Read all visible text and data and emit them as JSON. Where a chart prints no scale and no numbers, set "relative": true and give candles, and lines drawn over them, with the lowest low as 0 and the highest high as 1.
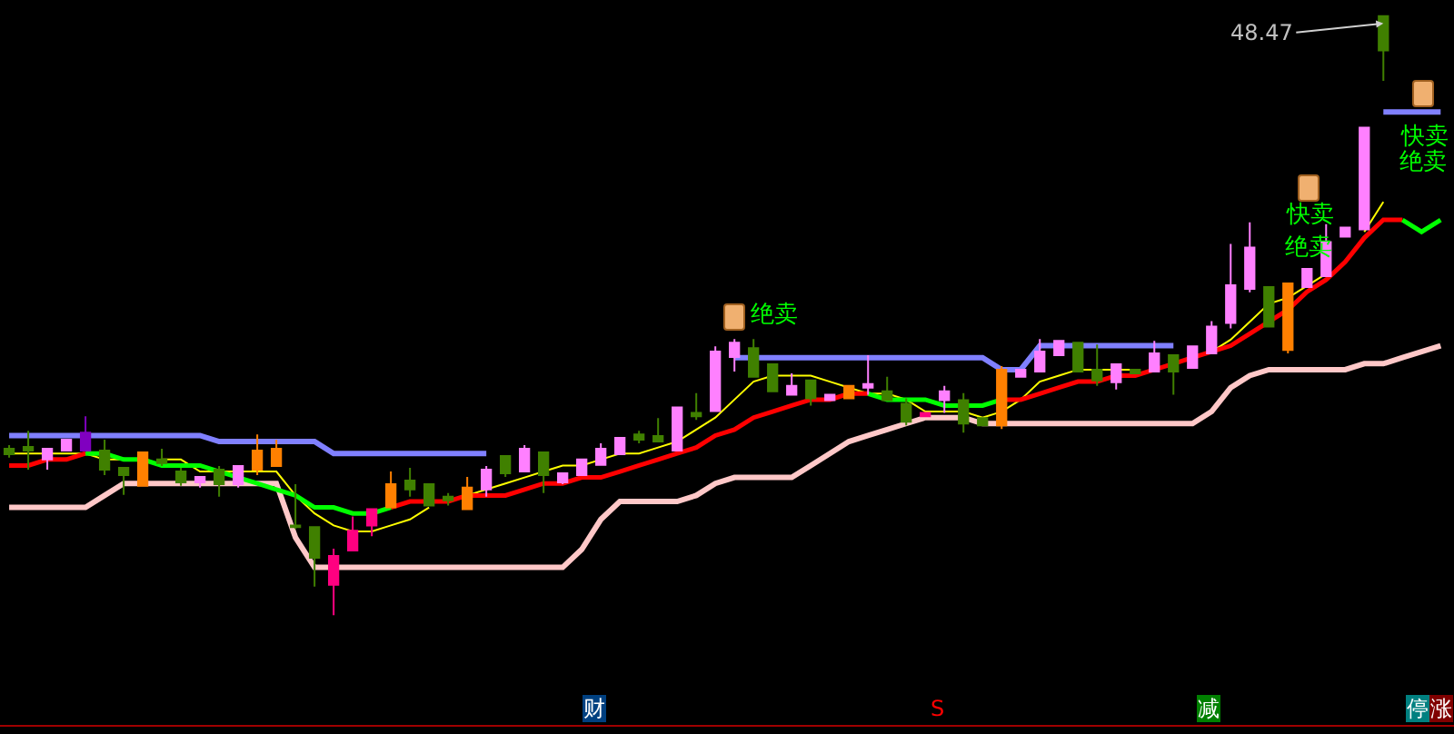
{
  "chart_data": {
    "type": "candlestick",
    "relative": true,
    "marker": "none",
    "line_style": "solid",
    "categories": [
      null,
      null,
      null,
      null,
      null,
      null,
      null,
      null,
      null,
      null,
      null,
      null,
      null,
      null,
      null,
      null,
      null,
      null,
      null,
      null,
      null,
      null,
      null,
      null,
      null,
      null,
      null,
      null,
      null,
      null,
      null,
      null,
      null,
      null,
      null,
      null,
      null,
      null,
      null,
      null,
      null,
      null,
      null,
      null,
      null,
      null,
      null,
      null,
      null,
      null,
      null,
      null,
      null,
      null,
      null,
      null,
      null,
      null,
      null,
      null,
      null,
      null,
      null,
      null,
      null,
      null,
      null,
      null,
      null,
      null,
      null,
      null,
      null,
      null,
      null,
      null
    ],
    "ohlc": [
      [
        0.278,
        0.284,
        0.263,
        0.269
      ],
      [
        0.281,
        0.308,
        0.243,
        0.275
      ],
      [
        0.26,
        0.278,
        0.243,
        0.278
      ],
      [
        0.275,
        0.293,
        0.275,
        0.293
      ],
      [
        0.305,
        0.332,
        0.275,
        0.275
      ],
      [
        0.275,
        0.293,
        0.234,
        0.243
      ],
      [
        0.246,
        0.246,
        0.201,
        0.234
      ],
      [
        0.216,
        0.272,
        0.216,
        0.272
      ],
      [
        0.26,
        0.278,
        0.249,
        0.254
      ],
      [
        0.24,
        0.246,
        0.216,
        0.222
      ],
      [
        0.222,
        0.231,
        0.213,
        0.231
      ],
      [
        0.243,
        0.249,
        0.198,
        0.219
      ],
      [
        0.219,
        0.249,
        0.213,
        0.249
      ],
      [
        0.243,
        0.302,
        0.234,
        0.275
      ],
      [
        0.249,
        0.293,
        0.249,
        0.278
      ],
      [
        0.15,
        0.219,
        0.144,
        0.147
      ],
      [
        0.147,
        0.147,
        0.048,
        0.096
      ],
      [
        0.051,
        0.111,
        0,
        0.099
      ],
      [
        0.108,
        0.165,
        0.108,
        0.141
      ],
      [
        0.15,
        0.177,
        0.132,
        0.177
      ],
      [
        0.18,
        0.24,
        0.18,
        0.219
      ],
      [
        0.225,
        0.246,
        0.198,
        0.21
      ],
      [
        0.219,
        0.219,
        0.183,
        0.183
      ],
      [
        0.198,
        0.204,
        0.183,
        0.192
      ],
      [
        0.177,
        0.231,
        0.177,
        0.213
      ],
      [
        0.21,
        0.249,
        0.198,
        0.243
      ],
      [
        0.266,
        0.266,
        0.231,
        0.237
      ],
      [
        0.24,
        0.284,
        0.24,
        0.278
      ],
      [
        0.272,
        0.272,
        0.204,
        0.234
      ],
      [
        0.222,
        0.237,
        0.219,
        0.237
      ],
      [
        0.234,
        0.26,
        0.234,
        0.26
      ],
      [
        0.251,
        0.287,
        0.251,
        0.278
      ],
      [
        0.269,
        0.296,
        0.269,
        0.296
      ],
      [
        0.302,
        0.308,
        0.287,
        0.293
      ],
      [
        0.299,
        0.329,
        0.29,
        0.29
      ],
      [
        0.275,
        0.347,
        0.275,
        0.347
      ],
      [
        0.338,
        0.371,
        0.326,
        0.332
      ],
      [
        0.341,
        0.449,
        0.341,
        0.44
      ],
      [
        0.431,
        0.461,
        0.407,
        0.455
      ],
      [
        0.446,
        0.461,
        0.398,
        0.398
      ],
      [
        0.419,
        0.419,
        0.374,
        0.374
      ],
      [
        0.368,
        0.404,
        0.368,
        0.383
      ],
      [
        0.392,
        0.392,
        0.35,
        0.362
      ],
      [
        0.359,
        0.368,
        0.359,
        0.368
      ],
      [
        0.362,
        0.383,
        0.362,
        0.383
      ],
      [
        0.38,
        0.434,
        0.368,
        0.386
      ],
      [
        0.374,
        0.398,
        0.359,
        0.359
      ],
      [
        0.353,
        0.362,
        0.317,
        0.323
      ],
      [
        0.332,
        0.338,
        0.332,
        0.338
      ],
      [
        0.359,
        0.383,
        0.338,
        0.374
      ],
      [
        0.359,
        0.371,
        0.305,
        0.32
      ],
      [
        0.329,
        0.329,
        0.317,
        0.317
      ],
      [
        0.317,
        0.416,
        0.311,
        0.41
      ],
      [
        0.398,
        0.41,
        0.398,
        0.41
      ],
      [
        0.407,
        0.461,
        0.407,
        0.44
      ],
      [
        0.434,
        0.458,
        0.434,
        0.458
      ],
      [
        0.455,
        0.455,
        0.407,
        0.407
      ],
      [
        0.41,
        0.452,
        0.383,
        0.392
      ],
      [
        0.389,
        0.419,
        0.377,
        0.419
      ],
      [
        0.41,
        0.41,
        0.404,
        0.404
      ],
      [
        0.407,
        0.458,
        0.407,
        0.437
      ],
      [
        0.434,
        0.434,
        0.368,
        0.407
      ],
      [
        0.413,
        0.449,
        0.413,
        0.449
      ],
      [
        0.437,
        0.491,
        0.437,
        0.482
      ],
      [
        0.488,
        0.62,
        0.479,
        0.551
      ],
      [
        0.545,
        0.656,
        0.539,
        0.614
      ],
      [
        0.548,
        0.548,
        0.482,
        0.482
      ],
      [
        0.443,
        0.554,
        0.437,
        0.554
      ],
      [
        0.548,
        0.578,
        0.548,
        0.578
      ],
      [
        0.566,
        0.653,
        0.566,
        0.623
      ],
      [
        0.632,
        0.647,
        0.632,
        0.647
      ],
      [
        0.644,
        0.814,
        0.644,
        0.814
      ],
      [
        1,
        1,
        0.892,
        0.943
      ],
      null,
      null,
      null
    ],
    "colors": [
      "#408000",
      "#408000",
      "#ff80ff",
      "#ff80ff",
      "#8000c0",
      "#408000",
      "#408000",
      "#ff8000",
      "#408000",
      "#408000",
      "#ff80ff",
      "#408000",
      "#ff80ff",
      "#ff8000",
      "#ff8000",
      "#408000",
      "#408000",
      "#ff0080",
      "#ff0080",
      "#ff0080",
      "#ff8000",
      "#408000",
      "#408000",
      "#408000",
      "#ff8000",
      "#ff80ff",
      "#408000",
      "#ff80ff",
      "#408000",
      "#ff80ff",
      "#ff80ff",
      "#ff80ff",
      "#ff80ff",
      "#408000",
      "#408000",
      "#ff80ff",
      "#408000",
      "#ff80ff",
      "#ff80ff",
      "#408000",
      "#408000",
      "#ff80ff",
      "#408000",
      "#ff80ff",
      "#ff8000",
      "#ff80ff",
      "#408000",
      "#408000",
      "#ff0080",
      "#ff80ff",
      "#408000",
      "#408000",
      "#ff8000",
      "#ff80ff",
      "#ff80ff",
      "#ff80ff",
      "#408000",
      "#408000",
      "#ff80ff",
      "#408000",
      "#ff80ff",
      "#408000",
      "#ff80ff",
      "#ff80ff",
      "#ff80ff",
      "#ff80ff",
      "#408000",
      "#ff8000",
      "#ff80ff",
      "#ff80ff",
      "#ff80ff",
      "#ff80ff",
      "#408000",
      null,
      null,
      null
    ],
    "series": [
      {
        "type": "line",
        "color": "#8080ff",
        "values": [
          0.3,
          0.3,
          0.3,
          0.3,
          0.3,
          0.3,
          0.3,
          0.3,
          0.3,
          0.3,
          0.3,
          0.29,
          0.29,
          0.29,
          0.29,
          0.29,
          0.29,
          0.27,
          0.27,
          0.27,
          0.27,
          0.27,
          0.27,
          0.27,
          0.27,
          0.27,
          null,
          null,
          null,
          null,
          null,
          null,
          null,
          null,
          null,
          null,
          null,
          null,
          0.43,
          0.43,
          0.43,
          0.43,
          0.43,
          0.43,
          0.43,
          0.43,
          0.43,
          0.43,
          0.43,
          0.43,
          0.43,
          0.43,
          0.41,
          0.41,
          0.45,
          0.45,
          0.45,
          0.45,
          0.45,
          0.45,
          0.45,
          0.45,
          null,
          null,
          null,
          null,
          null,
          null,
          null,
          null,
          null,
          null,
          0.84,
          0.84,
          0.84,
          0.84
        ]
      },
      {
        "type": "line",
        "color": "#ffc8c8",
        "values": [
          0.18,
          0.18,
          0.18,
          0.18,
          0.18,
          0.2,
          0.22,
          0.22,
          0.22,
          0.22,
          0.22,
          0.22,
          0.22,
          0.22,
          0.22,
          0.13,
          0.08,
          0.08,
          0.08,
          0.08,
          0.08,
          0.08,
          0.08,
          0.08,
          0.08,
          0.08,
          0.08,
          0.08,
          0.08,
          0.08,
          0.11,
          0.16,
          0.19,
          0.19,
          0.19,
          0.19,
          0.2,
          0.22,
          0.23,
          0.23,
          0.23,
          0.23,
          0.25,
          0.27,
          0.29,
          0.3,
          0.31,
          0.32,
          0.33,
          0.33,
          0.33,
          0.32,
          0.32,
          0.32,
          0.32,
          0.32,
          0.32,
          0.32,
          0.32,
          0.32,
          0.32,
          0.32,
          0.32,
          0.34,
          0.38,
          0.4,
          0.41,
          0.41,
          0.41,
          0.41,
          0.41,
          0.42,
          0.42,
          0.43,
          0.44,
          0.45
        ]
      },
      {
        "type": "line",
        "color": "#ffff00",
        "values": [
          0.27,
          0.27,
          0.27,
          0.27,
          0.27,
          0.26,
          0.26,
          null,
          0.26,
          0.26,
          0.24,
          0.24,
          0.24,
          0.24,
          0.24,
          0.2,
          0.17,
          0.15,
          0.14,
          0.14,
          0.15,
          0.16,
          0.18,
          null,
          0.2,
          0.21,
          0.22,
          0.23,
          0.24,
          0.25,
          0.25,
          0.26,
          0.27,
          0.27,
          0.28,
          0.29,
          0.31,
          0.33,
          0.36,
          0.39,
          0.4,
          0.4,
          0.4,
          0.39,
          0.38,
          0.37,
          0.37,
          0.36,
          0.34,
          0.34,
          0.34,
          0.33,
          0.34,
          0.36,
          0.39,
          0.4,
          0.41,
          0.41,
          0.41,
          0.41,
          null,
          null,
          null,
          0.44,
          0.46,
          0.49,
          0.52,
          0.53,
          0.55,
          0.57,
          null,
          0.64,
          0.69,
          null,
          null,
          null
        ]
      },
      {
        "type": "line",
        "color": "#ff0000",
        "values": [
          0.25,
          0.25,
          0.26,
          0.26,
          0.27,
          null,
          null,
          null,
          null,
          null,
          null,
          null,
          null,
          null,
          null,
          null,
          null,
          null,
          null,
          null,
          0.18,
          0.19,
          0.19,
          0.19,
          0.2,
          0.2,
          0.2,
          0.21,
          0.22,
          0.22,
          0.23,
          0.23,
          0.24,
          0.25,
          0.26,
          0.27,
          0.28,
          0.3,
          0.31,
          0.33,
          0.34,
          0.35,
          0.36,
          0.36,
          0.37,
          0.37,
          null,
          null,
          null,
          null,
          null,
          null,
          0.36,
          0.36,
          0.37,
          0.38,
          0.39,
          0.39,
          0.4,
          0.4,
          0.41,
          0.42,
          0.43,
          0.44,
          0.45,
          0.47,
          0.49,
          0.51,
          0.54,
          0.56,
          0.59,
          0.63,
          0.66,
          0.66,
          null,
          null
        ]
      },
      {
        "type": "line",
        "color": "#00ff00",
        "values": [
          null,
          null,
          null,
          null,
          0.27,
          0.27,
          0.26,
          0.26,
          0.25,
          0.25,
          0.25,
          0.24,
          0.23,
          0.22,
          0.21,
          0.2,
          0.18,
          0.18,
          0.17,
          0.17,
          0.18,
          null,
          null,
          null,
          null,
          null,
          null,
          null,
          null,
          null,
          null,
          null,
          null,
          null,
          null,
          null,
          null,
          null,
          null,
          null,
          null,
          null,
          null,
          null,
          null,
          0.37,
          0.36,
          0.36,
          0.36,
          0.35,
          0.35,
          0.35,
          0.36,
          null,
          null,
          null,
          null,
          null,
          null,
          null,
          null,
          null,
          null,
          null,
          null,
          null,
          null,
          null,
          null,
          null,
          null,
          null,
          null,
          0.66,
          0.64,
          0.66
        ]
      }
    ],
    "annotations": [
      "48.47",
      "绝卖",
      "快卖",
      "绝卖",
      "快卖",
      "绝卖",
      "财",
      "S",
      "减",
      "停",
      "涨"
    ]
  }
}
